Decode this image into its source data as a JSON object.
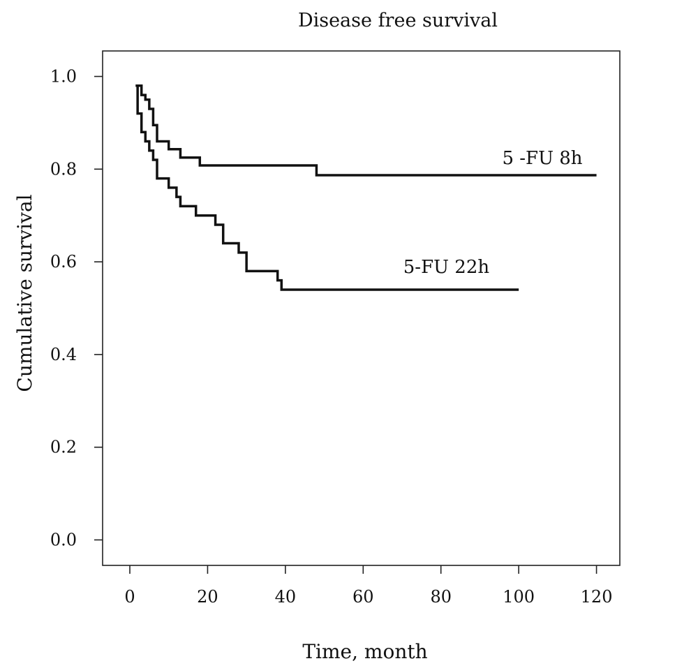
{
  "chart_data": {
    "type": "line",
    "step": true,
    "title": "Disease free survival",
    "xlabel": "Time, month",
    "ylabel": "Cumulative survival",
    "xlim": [
      -7,
      126
    ],
    "ylim": [
      -0.055,
      1.055
    ],
    "xticks": [
      0,
      20,
      40,
      60,
      80,
      100,
      120
    ],
    "xtick_labels": [
      "0",
      "20",
      "40",
      "60",
      "80",
      "100",
      "120"
    ],
    "yticks": [
      0.0,
      0.2,
      0.4,
      0.6,
      0.8,
      1.0
    ],
    "ytick_labels": [
      "0.0",
      "0.2",
      "0.4",
      "0.6",
      "0.8",
      "1.0"
    ],
    "grid": false,
    "legend": "none",
    "series": [
      {
        "name": "5 -FU 8h",
        "x": [
          1.5,
          3,
          4,
          5,
          6,
          7,
          10,
          13,
          18,
          48,
          120
        ],
        "y": [
          0.98,
          0.96,
          0.95,
          0.93,
          0.895,
          0.86,
          0.843,
          0.825,
          0.808,
          0.787,
          0.787
        ]
      },
      {
        "name": "5-FU 22h",
        "x": [
          1.5,
          2,
          3,
          4,
          5,
          6,
          7,
          10,
          12,
          13,
          17,
          22,
          24,
          28,
          30,
          38,
          39,
          100
        ],
        "y": [
          0.98,
          0.92,
          0.88,
          0.86,
          0.84,
          0.82,
          0.78,
          0.76,
          0.74,
          0.72,
          0.7,
          0.68,
          0.64,
          0.62,
          0.58,
          0.56,
          0.54,
          0.54
        ]
      }
    ]
  }
}
